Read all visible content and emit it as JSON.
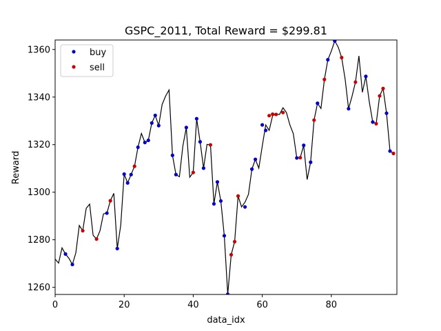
{
  "chart_data": {
    "type": "line",
    "title": "GSPC_2011, Total Reward = $299.81",
    "xlabel": "data_idx",
    "ylabel": "Reward",
    "xlim": [
      0,
      99
    ],
    "ylim": [
      1257,
      1364
    ],
    "x_ticks": [
      0,
      20,
      40,
      60,
      80
    ],
    "y_ticks": [
      1260,
      1280,
      1300,
      1320,
      1340,
      1360
    ],
    "grid": false,
    "legend_position": "top-left",
    "series": [
      {
        "type": "line",
        "color": "#000000",
        "x": [
          0,
          1,
          2,
          3,
          4,
          5,
          6,
          7,
          8,
          9,
          10,
          11,
          12,
          13,
          14,
          15,
          16,
          17,
          18,
          19,
          20,
          21,
          22,
          23,
          24,
          25,
          26,
          27,
          28,
          29,
          30,
          31,
          32,
          33,
          34,
          35,
          36,
          37,
          38,
          39,
          40,
          41,
          42,
          43,
          44,
          45,
          46,
          47,
          48,
          49,
          50,
          51,
          52,
          53,
          54,
          55,
          56,
          57,
          58,
          59,
          60,
          61,
          62,
          63,
          64,
          65,
          66,
          67,
          68,
          69,
          70,
          71,
          72,
          73,
          74,
          75,
          76,
          77,
          78,
          79,
          80,
          81,
          82,
          83,
          84,
          85,
          86,
          87,
          88,
          89,
          90,
          91,
          92,
          93,
          94,
          95,
          96,
          97,
          98
        ],
        "y": [
          1271.9,
          1270.2,
          1276.6,
          1274.0,
          1272.2,
          1269.6,
          1274.5,
          1286.0,
          1283.8,
          1293.2,
          1295.0,
          1281.9,
          1280.3,
          1283.8,
          1290.9,
          1291.2,
          1296.4,
          1299.5,
          1276.3,
          1286.0,
          1307.6,
          1303.9,
          1307.4,
          1310.9,
          1318.9,
          1324.7,
          1320.9,
          1321.8,
          1329.1,
          1332.3,
          1328.0,
          1336.9,
          1340.4,
          1343.0,
          1315.5,
          1307.4,
          1306.5,
          1319.4,
          1327.2,
          1306.3,
          1308.3,
          1330.9,
          1321.2,
          1310.1,
          1320.1,
          1319.9,
          1295.1,
          1304.3,
          1296.3,
          1281.7,
          1257.1,
          1273.7,
          1279.2,
          1298.4,
          1293.8,
          1295.8,
          1299.1,
          1309.7,
          1313.8,
          1310.1,
          1319.4,
          1328.3,
          1326.0,
          1332.2,
          1332.8,
          1332.7,
          1335.5,
          1333.5,
          1328.3,
          1324.6,
          1314.4,
          1314.5,
          1319.7,
          1305.3,
          1312.6,
          1330.3,
          1337.4,
          1335.2,
          1347.4,
          1355.7,
          1359.3,
          1363.6,
          1361.0,
          1356.6,
          1347.6,
          1335.1,
          1340.3,
          1346.3,
          1357.3,
          1342.0,
          1348.7,
          1338.0,
          1329.5,
          1328.8,
          1340.5,
          1343.6,
          1333.2,
          1317.3,
          1316.3
        ]
      },
      {
        "name": "buy",
        "type": "scatter",
        "color": "#0000cc",
        "x": [
          3,
          5,
          15,
          18,
          20,
          21,
          22,
          24,
          26,
          27,
          28,
          29,
          30,
          34,
          35,
          38,
          41,
          42,
          43,
          46,
          47,
          48,
          49,
          50,
          55,
          57,
          58,
          60,
          61,
          70,
          72,
          74,
          76,
          79,
          81,
          85,
          90,
          92,
          96,
          97
        ],
        "y": [
          1274.0,
          1269.6,
          1291.2,
          1276.3,
          1307.6,
          1303.9,
          1307.4,
          1318.9,
          1320.9,
          1321.8,
          1329.1,
          1332.3,
          1328.0,
          1315.5,
          1307.4,
          1327.2,
          1330.9,
          1321.2,
          1310.1,
          1295.1,
          1304.3,
          1296.3,
          1281.7,
          1257.1,
          1293.8,
          1309.7,
          1313.8,
          1328.3,
          1326.0,
          1314.4,
          1319.7,
          1312.6,
          1337.4,
          1355.7,
          1363.6,
          1335.1,
          1348.7,
          1329.5,
          1333.2,
          1317.3
        ]
      },
      {
        "name": "sell",
        "type": "scatter",
        "color": "#cc0000",
        "x": [
          8,
          12,
          16,
          23,
          40,
          45,
          51,
          52,
          53,
          62,
          63,
          64,
          66,
          71,
          75,
          78,
          83,
          87,
          93,
          94,
          95,
          98
        ],
        "y": [
          1283.8,
          1280.3,
          1296.4,
          1310.9,
          1308.3,
          1319.9,
          1273.7,
          1279.2,
          1298.4,
          1332.2,
          1332.8,
          1332.7,
          1333.5,
          1314.5,
          1330.3,
          1347.4,
          1356.6,
          1346.3,
          1328.8,
          1340.5,
          1343.6,
          1316.3
        ]
      }
    ]
  }
}
